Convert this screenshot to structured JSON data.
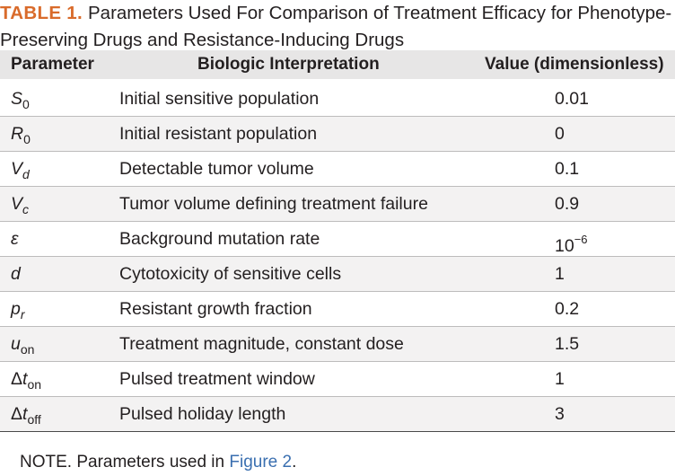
{
  "caption": {
    "label": "TABLE 1.",
    "text": "Parameters Used For Comparison of Treatment Efficacy for Phenotype-Preserving Drugs and Resistance-Inducing Drugs"
  },
  "headers": {
    "parameter": "Parameter",
    "interpretation": "Biologic Interpretation",
    "value": "Value (dimensionless)"
  },
  "rows": [
    {
      "symbol": "S",
      "sub": "0",
      "interpretation": "Initial sensitive population",
      "value": "0.01"
    },
    {
      "symbol": "R",
      "sub": "0",
      "interpretation": "Initial resistant population",
      "value": "0"
    },
    {
      "symbol": "V",
      "sub": "d",
      "interpretation": "Detectable tumor volume",
      "value": "0.1"
    },
    {
      "symbol": "V",
      "sub": "c",
      "interpretation": "Tumor volume defining treatment failure",
      "value": "0.9"
    },
    {
      "symbol": "ε",
      "sub": "",
      "interpretation": "Background mutation rate",
      "value": "10",
      "value_sup": "−6"
    },
    {
      "symbol": "d",
      "sub": "",
      "interpretation": "Cytotoxicity of sensitive cells",
      "value": "1"
    },
    {
      "symbol": "p",
      "sub": "r",
      "interpretation": "Resistant growth fraction",
      "value": "0.2"
    },
    {
      "symbol": "u",
      "sub": "on",
      "interpretation": "Treatment magnitude, constant dose",
      "value": "1.5"
    },
    {
      "symbol": "Δt",
      "sub": "on",
      "interpretation": "Pulsed treatment window",
      "value": "1"
    },
    {
      "symbol": "Δt",
      "sub": "off",
      "interpretation": "Pulsed holiday length",
      "value": "3"
    }
  ],
  "note": {
    "text": "NOTE. Parameters used in ",
    "link": "Figure 2",
    "end": "."
  }
}
